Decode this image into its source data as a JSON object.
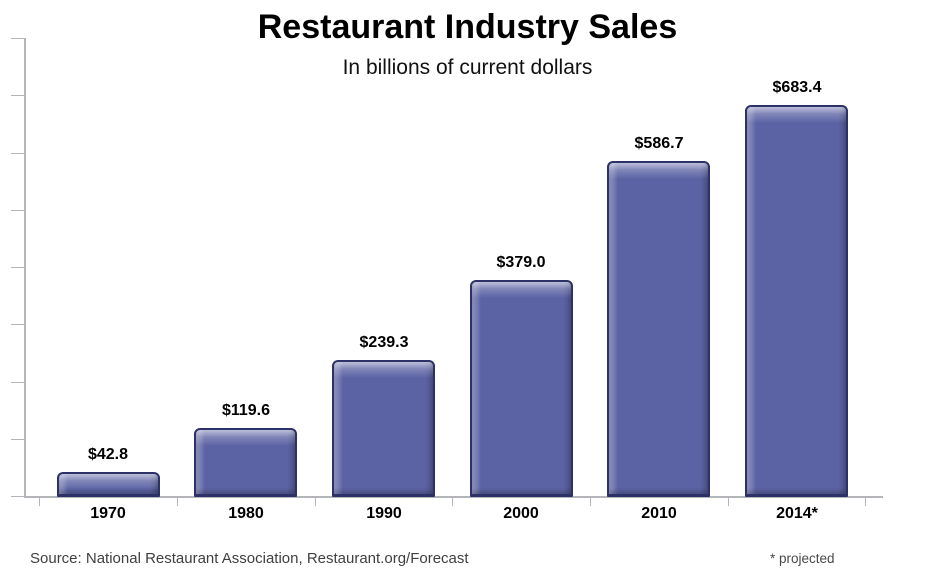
{
  "chart_data": {
    "type": "bar",
    "title": "Restaurant Industry Sales",
    "subtitle": "In billions of current dollars",
    "categories": [
      "1970",
      "1980",
      "1990",
      "2000",
      "2010",
      "2014*"
    ],
    "values": [
      42.8,
      119.6,
      239.3,
      379.0,
      586.7,
      683.4
    ],
    "value_labels": [
      "$42.8",
      "$119.6",
      "$239.3",
      "$379.0",
      "$586.7",
      "$683.4"
    ],
    "xlabel": "",
    "ylabel": "",
    "ylim": [
      0,
      800
    ],
    "y_tick_step": 100,
    "y_tick_labels_shown": false,
    "grid": false,
    "legend_position": "none",
    "colors": {
      "bar_fill": "#5c63a4",
      "bar_border": "#2c3267",
      "bar_highlight": "#aab0de",
      "axis": "#b3b5b8",
      "label_text": "#000000",
      "source_text": "#3f3f3f"
    }
  },
  "footer": {
    "source": "Source: National Restaurant Association, Restaurant.org/Forecast",
    "note": "* projected"
  }
}
